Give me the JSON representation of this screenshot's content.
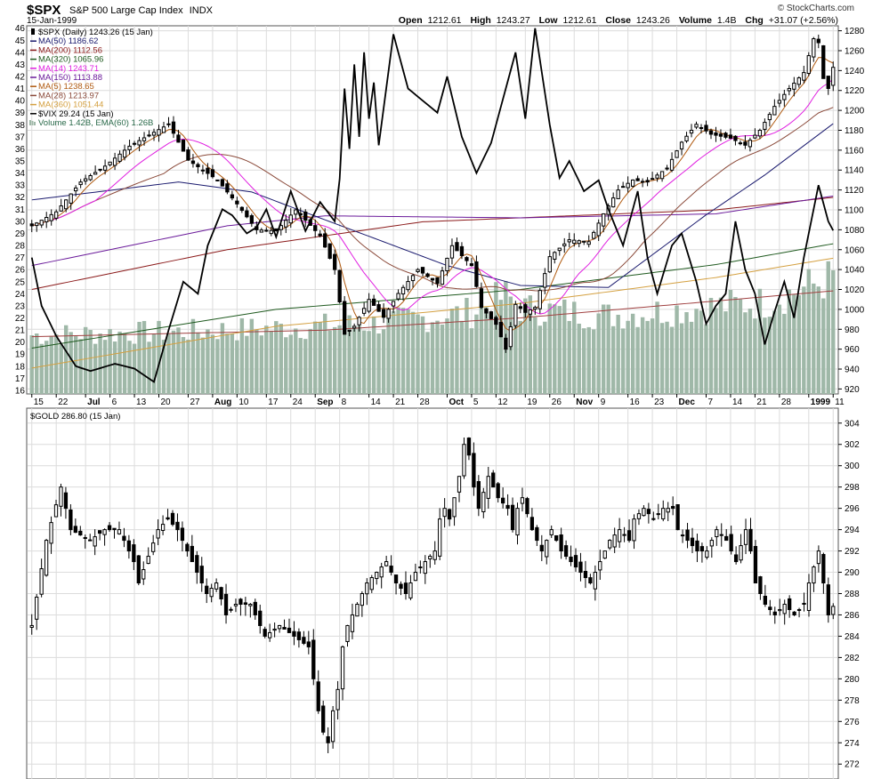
{
  "header": {
    "symbol": "$SPX",
    "name": "S&P 500 Large Cap Index",
    "exchange": "INDX",
    "date": "15-Jan-1999",
    "watermark": "© StockCharts.com",
    "quote": {
      "open_label": "Open",
      "open": "1212.61",
      "high_label": "High",
      "high": "1243.27",
      "low_label": "Low",
      "low": "1212.61",
      "close_label": "Close",
      "close": "1243.26",
      "volume_label": "Volume",
      "volume": "1.4B",
      "chg_label": "Chg",
      "chg": "+31.07 (+2.56%)"
    }
  },
  "legend": {
    "items": [
      {
        "text": "$SPX (Daily) 1243.26 (15 Jan)",
        "color": "#000000",
        "marker": "candle"
      },
      {
        "text": "MA(50) 1186.62",
        "color": "#1a1a6e",
        "marker": "line"
      },
      {
        "text": "MA(200) 1112.56",
        "color": "#8b1a1a",
        "marker": "line"
      },
      {
        "text": "MA(320) 1065.96",
        "color": "#1f5a1f",
        "marker": "line"
      },
      {
        "text": "MA(14) 1243.71",
        "color": "#e020e0",
        "marker": "line"
      },
      {
        "text": "MA(150) 1113.88",
        "color": "#6a1a9a",
        "marker": "line"
      },
      {
        "text": "MA(5) 1238.65",
        "color": "#b05a10",
        "marker": "line"
      },
      {
        "text": "MA(28) 1213.97",
        "color": "#8b4a3a",
        "marker": "line"
      },
      {
        "text": "MA(360) 1051.44",
        "color": "#d4a040",
        "marker": "line"
      },
      {
        "text": "$VIX 29.24 (15 Jan)",
        "color": "#000000",
        "marker": "line"
      },
      {
        "text": "Volume 1.42B, EMA(60) 1.26B",
        "color": "#2a6a4a",
        "marker": "volume"
      }
    ],
    "gold_text": "$GOLD 286.80 (15 Jan)"
  },
  "colors": {
    "candle": "#000000",
    "volume": "#9fb8a8",
    "volume_ema": "#a04040",
    "vix": "#000000",
    "ma50": "#1a1a6e",
    "ma200": "#8b1a1a",
    "ma320": "#1f5a1f",
    "ma14": "#e020e0",
    "ma150": "#6a1a9a",
    "ma5": "#b05a10",
    "ma28": "#8b4a3a",
    "ma360": "#d4a040",
    "grid": "#dcdcdc"
  },
  "chart_data": [
    {
      "type": "candlestick",
      "title": "$SPX S&P 500 Large Cap Index INDX",
      "x_ticks": [
        "15",
        "22",
        "Jul",
        "6",
        "13",
        "20",
        "27",
        "Aug",
        "10",
        "17",
        "24",
        "Sep",
        "8",
        "14",
        "21",
        "28",
        "Oct",
        "5",
        "12",
        "19",
        "26",
        "Nov",
        "9",
        "16",
        "23",
        "Dec",
        "7",
        "14",
        "21",
        "28",
        "1999",
        "11"
      ],
      "bold_ticks": [
        "Jul",
        "Aug",
        "Sep",
        "Oct",
        "Nov",
        "Dec",
        "1999"
      ],
      "y_right_ticks": [
        "1280",
        "1260",
        "1240",
        "1220",
        "1200",
        "1180",
        "1160",
        "1140",
        "1120",
        "1100",
        "1080",
        "1060",
        "1040",
        "1020",
        "1000",
        "980",
        "960",
        "940",
        "920"
      ],
      "y_right_range": [
        915,
        1285
      ],
      "y_left_ticks": [
        "46",
        "45",
        "44",
        "43",
        "42",
        "41",
        "40",
        "39",
        "38",
        "37",
        "36",
        "35",
        "34",
        "33",
        "32",
        "31",
        "30",
        "29",
        "28",
        "27",
        "26",
        "25",
        "24",
        "23",
        "22",
        "21",
        "20",
        "19",
        "18",
        "17",
        "16"
      ],
      "y_left_range": [
        15.7,
        46.2
      ],
      "close_anchors": [
        [
          0,
          1084
        ],
        [
          5,
          1098
        ],
        [
          10,
          1128
        ],
        [
          15,
          1144
        ],
        [
          20,
          1164
        ],
        [
          25,
          1178
        ],
        [
          28,
          1186
        ],
        [
          32,
          1150
        ],
        [
          38,
          1130
        ],
        [
          42,
          1106
        ],
        [
          46,
          1080
        ],
        [
          50,
          1079
        ],
        [
          54,
          1100
        ],
        [
          59,
          1074
        ],
        [
          62,
          1040
        ],
        [
          64,
          975
        ],
        [
          66,
          983
        ],
        [
          69,
          1010
        ],
        [
          72,
          992
        ],
        [
          75,
          1016
        ],
        [
          79,
          1040
        ],
        [
          83,
          1026
        ],
        [
          86,
          1064
        ],
        [
          90,
          1044
        ],
        [
          92,
          1002
        ],
        [
          95,
          985
        ],
        [
          97,
          960
        ],
        [
          99,
          1005
        ],
        [
          101,
          997
        ],
        [
          103,
          1002
        ],
        [
          106,
          1053
        ],
        [
          110,
          1070
        ],
        [
          114,
          1068
        ],
        [
          117,
          1096
        ],
        [
          120,
          1120
        ],
        [
          123,
          1130
        ],
        [
          126,
          1128
        ],
        [
          130,
          1142
        ],
        [
          133,
          1168
        ],
        [
          136,
          1186
        ],
        [
          139,
          1176
        ],
        [
          143,
          1172
        ],
        [
          146,
          1165
        ],
        [
          149,
          1180
        ],
        [
          152,
          1204
        ],
        [
          155,
          1222
        ],
        [
          158,
          1238
        ],
        [
          160,
          1272
        ],
        [
          161,
          1268
        ],
        [
          162,
          1232
        ],
        [
          163,
          1222
        ],
        [
          164,
          1243.26
        ]
      ],
      "ma_anchors": {
        "ma50": [
          [
            0,
            1110
          ],
          [
            30,
            1128
          ],
          [
            45,
            1118
          ],
          [
            60,
            1090
          ],
          [
            85,
            1044
          ],
          [
            100,
            1024
          ],
          [
            118,
            1022
          ],
          [
            138,
            1095
          ],
          [
            150,
            1135
          ],
          [
            164,
            1186.62
          ]
        ],
        "ma200": [
          [
            0,
            1020
          ],
          [
            40,
            1060
          ],
          [
            80,
            1088
          ],
          [
            110,
            1094
          ],
          [
            140,
            1100
          ],
          [
            164,
            1112.56
          ]
        ],
        "ma320": [
          [
            0,
            961
          ],
          [
            50,
            1000
          ],
          [
            100,
            1020
          ],
          [
            140,
            1045
          ],
          [
            164,
            1065.96
          ]
        ],
        "ma150": [
          [
            0,
            1044
          ],
          [
            40,
            1084
          ],
          [
            60,
            1094
          ],
          [
            100,
            1092
          ],
          [
            140,
            1096
          ],
          [
            164,
            1113.88
          ]
        ],
        "ma360": [
          [
            0,
            941
          ],
          [
            50,
            983
          ],
          [
            100,
            1006
          ],
          [
            140,
            1032
          ],
          [
            164,
            1051.44
          ]
        ]
      },
      "vix_anchors": [
        [
          0,
          27
        ],
        [
          2,
          23
        ],
        [
          5,
          20.5
        ],
        [
          9,
          18
        ],
        [
          12,
          17.6
        ],
        [
          17,
          18.2
        ],
        [
          21,
          17.8
        ],
        [
          25,
          16.7
        ],
        [
          28,
          21
        ],
        [
          31,
          25
        ],
        [
          34,
          24
        ],
        [
          36,
          28
        ],
        [
          39,
          31
        ],
        [
          41,
          30.5
        ],
        [
          44,
          29
        ],
        [
          46,
          29.5
        ],
        [
          48,
          31
        ],
        [
          50,
          28.7
        ],
        [
          53,
          32.5
        ],
        [
          56,
          29.2
        ],
        [
          59,
          31.6
        ],
        [
          62,
          30
        ],
        [
          63,
          33.5
        ],
        [
          64,
          41
        ],
        [
          65,
          36
        ],
        [
          66,
          43
        ],
        [
          67,
          37
        ],
        [
          68,
          44
        ],
        [
          69,
          38.5
        ],
        [
          70,
          41.5
        ],
        [
          71,
          36.3
        ],
        [
          74,
          45.5
        ],
        [
          77,
          41
        ],
        [
          80,
          40
        ],
        [
          83,
          39
        ],
        [
          85,
          42
        ],
        [
          88,
          37
        ],
        [
          91,
          34
        ],
        [
          94,
          36.5
        ],
        [
          97,
          41
        ],
        [
          99,
          44
        ],
        [
          101,
          38.5
        ],
        [
          103,
          46
        ],
        [
          106,
          38
        ],
        [
          108,
          33.6
        ],
        [
          110,
          35
        ],
        [
          113,
          32.5
        ],
        [
          116,
          33.4
        ],
        [
          118,
          31
        ],
        [
          121,
          28
        ],
        [
          124,
          32.5
        ],
        [
          126,
          27
        ],
        [
          128,
          24
        ],
        [
          131,
          28
        ],
        [
          133,
          29
        ],
        [
          136,
          25
        ],
        [
          138,
          21.5
        ],
        [
          140,
          23
        ],
        [
          142,
          24
        ],
        [
          144,
          30
        ],
        [
          146,
          26
        ],
        [
          148,
          24
        ],
        [
          150,
          19.8
        ],
        [
          152,
          22.5
        ],
        [
          154,
          25
        ],
        [
          156,
          22
        ],
        [
          158,
          27
        ],
        [
          160,
          31
        ],
        [
          161,
          33
        ],
        [
          163,
          30
        ],
        [
          164,
          29.24
        ]
      ],
      "volume_anchors": [
        [
          0,
          0.72
        ],
        [
          30,
          0.76
        ],
        [
          60,
          0.83
        ],
        [
          72,
          0.87
        ],
        [
          90,
          1.0
        ],
        [
          97,
          1.2
        ],
        [
          100,
          1.05
        ],
        [
          118,
          0.96
        ],
        [
          130,
          1.02
        ],
        [
          150,
          1.12
        ],
        [
          164,
          1.42
        ]
      ],
      "volume_ema_anchors": [
        [
          0,
          0.7
        ],
        [
          60,
          0.78
        ],
        [
          100,
          0.93
        ],
        [
          164,
          1.26
        ]
      ],
      "volume_range": [
        0,
        4.5
      ]
    },
    {
      "type": "candlestick",
      "title": "$GOLD 286.80 (15 Jan)",
      "y_right_ticks": [
        "304",
        "302",
        "300",
        "298",
        "296",
        "294",
        "292",
        "290",
        "288",
        "286",
        "284",
        "282",
        "280",
        "278",
        "276",
        "274",
        "272"
      ],
      "y_range": [
        270.6,
        305.4
      ],
      "close_anchors": [
        [
          0,
          285
        ],
        [
          3,
          293
        ],
        [
          6,
          298
        ],
        [
          8,
          294
        ],
        [
          12,
          293
        ],
        [
          15,
          294
        ],
        [
          18,
          294
        ],
        [
          21,
          291
        ],
        [
          22,
          289
        ],
        [
          26,
          294
        ],
        [
          28,
          295
        ],
        [
          30,
          294
        ],
        [
          33,
          291
        ],
        [
          36,
          288
        ],
        [
          38,
          289
        ],
        [
          40,
          286
        ],
        [
          42,
          287
        ],
        [
          45,
          287
        ],
        [
          48,
          284
        ],
        [
          51,
          285
        ],
        [
          54,
          284
        ],
        [
          57,
          283
        ],
        [
          58,
          280
        ],
        [
          59,
          277
        ],
        [
          60,
          275
        ],
        [
          61,
          274
        ],
        [
          62,
          277
        ],
        [
          63,
          279
        ],
        [
          64,
          283
        ],
        [
          65,
          285
        ],
        [
          67,
          287
        ],
        [
          69,
          289
        ],
        [
          71,
          290
        ],
        [
          73,
          291
        ],
        [
          75,
          289
        ],
        [
          77,
          288
        ],
        [
          79,
          290
        ],
        [
          81,
          291
        ],
        [
          83,
          292
        ],
        [
          84,
          295
        ],
        [
          85,
          296
        ],
        [
          86,
          295
        ],
        [
          88,
          299
        ],
        [
          89,
          302
        ],
        [
          90,
          301
        ],
        [
          91,
          298
        ],
        [
          92,
          296
        ],
        [
          94,
          299
        ],
        [
          96,
          297
        ],
        [
          98,
          296
        ],
        [
          99,
          294
        ],
        [
          100,
          296
        ],
        [
          101,
          297
        ],
        [
          103,
          294
        ],
        [
          105,
          292
        ],
        [
          107,
          294
        ],
        [
          109,
          292
        ],
        [
          111,
          291
        ],
        [
          113,
          290
        ],
        [
          115,
          289
        ],
        [
          117,
          291
        ],
        [
          119,
          293
        ],
        [
          121,
          294
        ],
        [
          123,
          293
        ],
        [
          124,
          295
        ],
        [
          126,
          296
        ],
        [
          128,
          295
        ],
        [
          130,
          296
        ],
        [
          132,
          296
        ],
        [
          133,
          294
        ],
        [
          135,
          293
        ],
        [
          137,
          292
        ],
        [
          139,
          292
        ],
        [
          141,
          294
        ],
        [
          143,
          293
        ],
        [
          145,
          291
        ],
        [
          147,
          294
        ],
        [
          148,
          292
        ],
        [
          149,
          289
        ],
        [
          151,
          287
        ],
        [
          153,
          286
        ],
        [
          155,
          287
        ],
        [
          157,
          286
        ],
        [
          159,
          287
        ],
        [
          160,
          289
        ],
        [
          162,
          292
        ],
        [
          163,
          289
        ],
        [
          164,
          286
        ],
        [
          165,
          286.8
        ]
      ]
    }
  ]
}
